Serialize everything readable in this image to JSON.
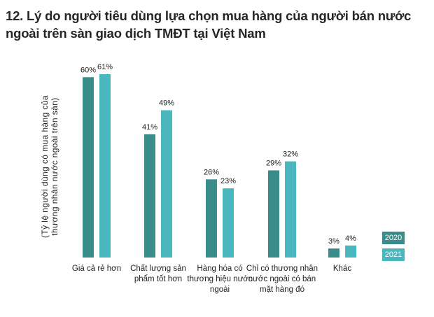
{
  "title": "12. Lý do người tiêu dùng lựa chọn mua hàng của người bán nước ngoài trên sàn giao dịch TMĐT tại Việt Nam",
  "colors": {
    "series_2020": "#3a8c8a",
    "series_2021": "#4ab7be"
  },
  "chart_data": {
    "type": "bar",
    "title": "12. Lý do người tiêu dùng lựa chọn mua hàng của người bán nước ngoài trên sàn giao dịch TMĐT tại Việt Nam",
    "ylabel": "(Tỷ lệ người dùng có mua hàng của thương nhân nước ngoài trên sàn)",
    "xlabel": "",
    "categories": [
      "Giá cả rẻ hơn",
      "Chất lượng sản phẩm tốt hơn",
      "Hàng hóa có thương hiệu nước ngoài",
      "Chỉ có thương nhân nước ngoài có bán mặt hàng đó",
      "Khác"
    ],
    "category_lines": [
      [
        "Giá cả rẻ hơn"
      ],
      [
        "Chất lượng sản",
        "phẩm tốt hơn"
      ],
      [
        "Hàng hóa có",
        "thương hiệu nước",
        "ngoài"
      ],
      [
        "Chỉ có thương nhân",
        "nước ngoài có bán",
        "mặt hàng đó"
      ],
      [
        "Khác"
      ]
    ],
    "series": [
      {
        "name": "2020",
        "values": [
          60,
          41,
          26,
          29,
          3
        ],
        "labels": [
          "60%",
          "41%",
          "26%",
          "29%",
          "3%"
        ]
      },
      {
        "name": "2021",
        "values": [
          61,
          49,
          23,
          32,
          4
        ],
        "labels": [
          "61%",
          "49%",
          "23%",
          "32%",
          "4%"
        ]
      }
    ],
    "ylim": [
      0,
      61
    ],
    "grid": false,
    "legend": "bottom-right"
  }
}
